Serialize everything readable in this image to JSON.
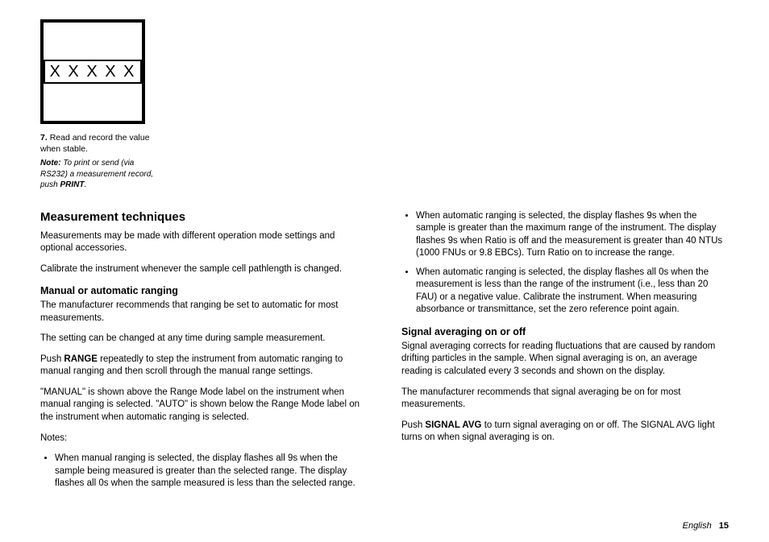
{
  "figure": {
    "lcd_text": "X X X X X",
    "step_num": "7.",
    "step_text": "Read and record the value when stable.",
    "note_label": "Note:",
    "note_text": "To print or send (via RS232) a measurement record, push",
    "note_bold": "PRINT",
    "note_tail": "."
  },
  "left": {
    "h2": "Measurement techniques",
    "p1": "Measurements may be made with different operation mode settings and optional accessories.",
    "p2": "Calibrate the instrument whenever the sample cell pathlength is changed.",
    "h3a": "Manual or automatic ranging",
    "p3": "The manufacturer recommends that ranging be set to automatic for most measurements.",
    "p4": "The setting can be changed at any time during sample measurement.",
    "p5a": "Push ",
    "p5_bold": "RANGE",
    "p5b": " repeatedly to step the instrument from automatic ranging to manual ranging and then scroll through the manual range settings.",
    "p6": "\"MANUAL\" is shown above the Range Mode label on the instrument when manual ranging is selected. \"AUTO\" is shown below the Range Mode label on the instrument when automatic ranging is selected.",
    "notes_label": "Notes:",
    "note1": "When manual ranging is selected, the display flashes all 9s when the sample being measured is greater than the selected range. The display flashes all 0s when the sample measured is less than the selected range."
  },
  "right": {
    "note2": "When automatic ranging is selected, the display flashes 9s when the sample is greater than the maximum range of the instrument. The display flashes 9s when Ratio is off and the measurement is greater than 40 NTUs (1000 FNUs or 9.8 EBCs). Turn Ratio on to increase the range.",
    "note3": "When automatic ranging is selected, the display flashes all 0s when the measurement is less than the range of the instrument (i.e., less than 20 FAU) or a negative value. Calibrate the instrument. When measuring absorbance or transmittance, set the zero reference point again.",
    "h3b": "Signal averaging on or off",
    "p7": "Signal averaging corrects for reading fluctuations that are caused by random drifting particles in the sample. When signal averaging is on, an average reading is calculated every 3 seconds and shown on the display.",
    "p8": "The manufacturer recommends that signal averaging be on for most measurements.",
    "p9a": "Push ",
    "p9_bold": "SIGNAL AVG",
    "p9b": " to turn signal averaging on or off. The SIGNAL AVG light turns on when signal averaging is on."
  },
  "footer": {
    "lang": "English",
    "page": "15"
  },
  "styles": {
    "text_color": "#000000",
    "background": "#ffffff"
  }
}
